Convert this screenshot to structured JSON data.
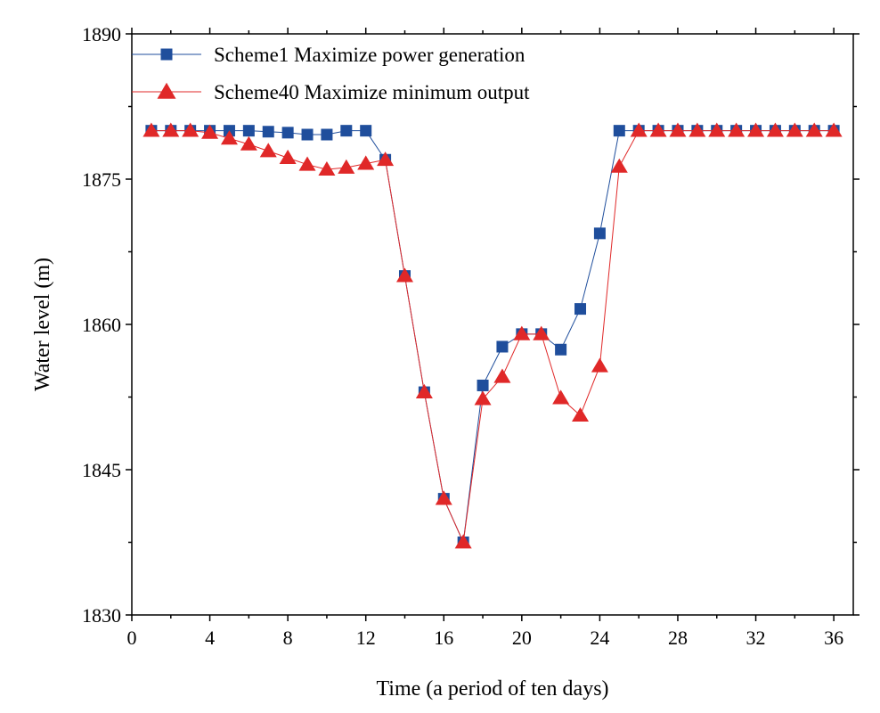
{
  "chart_data": {
    "type": "line",
    "title": "",
    "xlabel": "Time (a period of ten days)",
    "ylabel": "Water level (m)",
    "xlim": [
      0,
      37
    ],
    "ylim": [
      1830,
      1890
    ],
    "xticks": [
      0,
      4,
      8,
      12,
      16,
      20,
      24,
      28,
      32,
      36
    ],
    "yticks": [
      1830,
      1845,
      1860,
      1875,
      1890
    ],
    "legend_position": "top-left",
    "grid": false,
    "x": [
      1,
      2,
      3,
      4,
      5,
      6,
      7,
      8,
      9,
      10,
      11,
      12,
      13,
      14,
      15,
      16,
      17,
      18,
      19,
      20,
      21,
      22,
      23,
      24,
      25,
      26,
      27,
      28,
      29,
      30,
      31,
      32,
      33,
      34,
      35,
      36
    ],
    "series": [
      {
        "name": "Scheme1 Maximize power generation",
        "color": "#1f4e9c",
        "marker": "square",
        "values": [
          1880,
          1880,
          1880,
          1880,
          1880,
          1880,
          1879.9,
          1879.8,
          1879.6,
          1879.6,
          1880,
          1880,
          1877,
          1865,
          1853,
          1842,
          1837.5,
          1853.7,
          1857.7,
          1859,
          1859,
          1857.4,
          1861.6,
          1869.4,
          1880,
          1880,
          1880,
          1880,
          1880,
          1880,
          1880,
          1880,
          1880,
          1880,
          1880,
          1880
        ]
      },
      {
        "name": "Scheme40 Maximize minimum output",
        "color": "#e02828",
        "marker": "triangle",
        "values": [
          1880,
          1880,
          1880,
          1879.8,
          1879.2,
          1878.6,
          1877.9,
          1877.2,
          1876.5,
          1876,
          1876.2,
          1876.6,
          1877,
          1865,
          1853,
          1842,
          1837.5,
          1852.3,
          1854.6,
          1859,
          1859,
          1852.4,
          1850.6,
          1855.7,
          1876.3,
          1880,
          1880,
          1880,
          1880,
          1880,
          1880,
          1880,
          1880,
          1880,
          1880,
          1880
        ]
      }
    ]
  }
}
